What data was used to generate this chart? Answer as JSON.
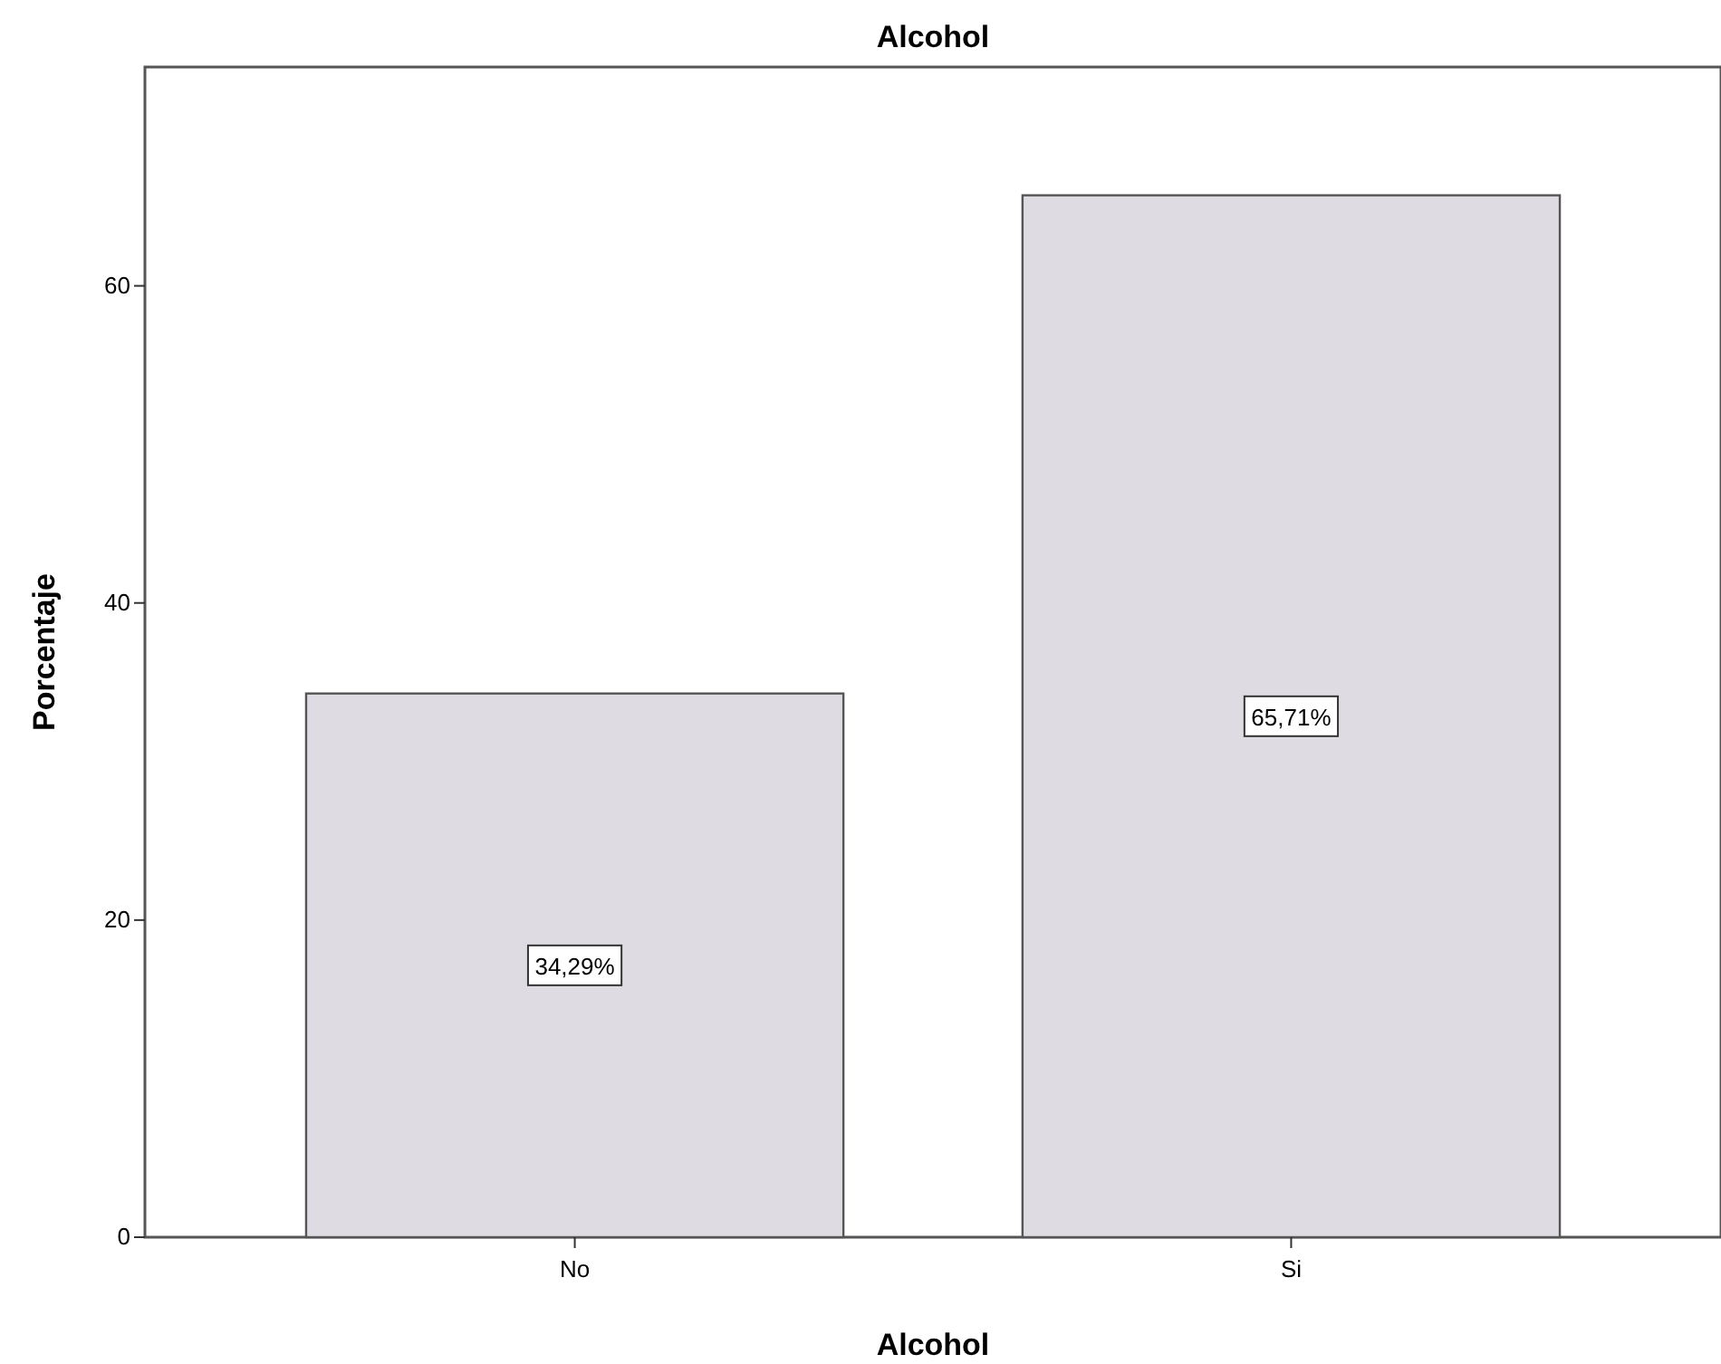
{
  "chart_data": {
    "type": "bar",
    "title": "Alcohol",
    "xlabel": "Alcohol",
    "ylabel": "Porcentaje",
    "categories": [
      "No",
      "Si"
    ],
    "values": [
      34.29,
      65.71
    ],
    "value_labels": [
      "34,29%",
      "65,71%"
    ],
    "color": "#dedce2",
    "ylim": [
      0,
      73.8
    ],
    "yticks": [
      0,
      20,
      40,
      60
    ],
    "grid": false
  }
}
